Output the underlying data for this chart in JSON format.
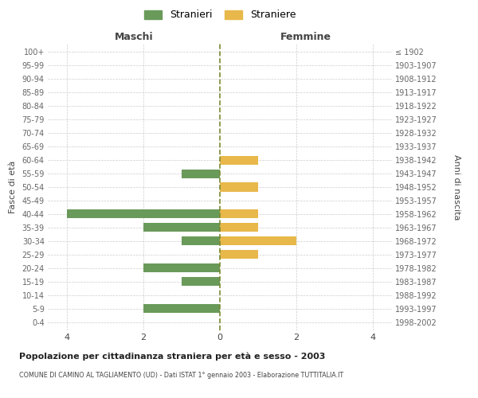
{
  "age_groups": [
    "100+",
    "95-99",
    "90-94",
    "85-89",
    "80-84",
    "75-79",
    "70-74",
    "65-69",
    "60-64",
    "55-59",
    "50-54",
    "45-49",
    "40-44",
    "35-39",
    "30-34",
    "25-29",
    "20-24",
    "15-19",
    "10-14",
    "5-9",
    "0-4"
  ],
  "birth_years": [
    "≤ 1902",
    "1903-1907",
    "1908-1912",
    "1913-1917",
    "1918-1922",
    "1923-1927",
    "1928-1932",
    "1933-1937",
    "1938-1942",
    "1943-1947",
    "1948-1952",
    "1953-1957",
    "1958-1962",
    "1963-1967",
    "1968-1972",
    "1973-1977",
    "1978-1982",
    "1983-1987",
    "1988-1992",
    "1993-1997",
    "1998-2002"
  ],
  "males": [
    0,
    0,
    0,
    0,
    0,
    0,
    0,
    0,
    0,
    1,
    0,
    0,
    4,
    2,
    1,
    0,
    2,
    1,
    0,
    2,
    0
  ],
  "females": [
    0,
    0,
    0,
    0,
    0,
    0,
    0,
    0,
    1,
    0,
    1,
    0,
    1,
    1,
    2,
    1,
    0,
    0,
    0,
    0,
    0
  ],
  "male_color": "#6a9a5a",
  "female_color": "#e8b84b",
  "center_line_color": "#7a8a30",
  "grid_color": "#cccccc",
  "title_main": "Popolazione per cittadinanza straniera per età e sesso - 2003",
  "title_sub": "COMUNE DI CAMINO AL TAGLIAMENTO (UD) - Dati ISTAT 1° gennaio 2003 - Elaborazione TUTTITALIA.IT",
  "legend_stranieri": "Stranieri",
  "legend_straniere": "Straniere",
  "xlabel_left": "Maschi",
  "xlabel_right": "Femmine",
  "ylabel_left": "Fasce di età",
  "ylabel_right": "Anni di nascita",
  "xlim": 4.5,
  "background_color": "#ffffff"
}
